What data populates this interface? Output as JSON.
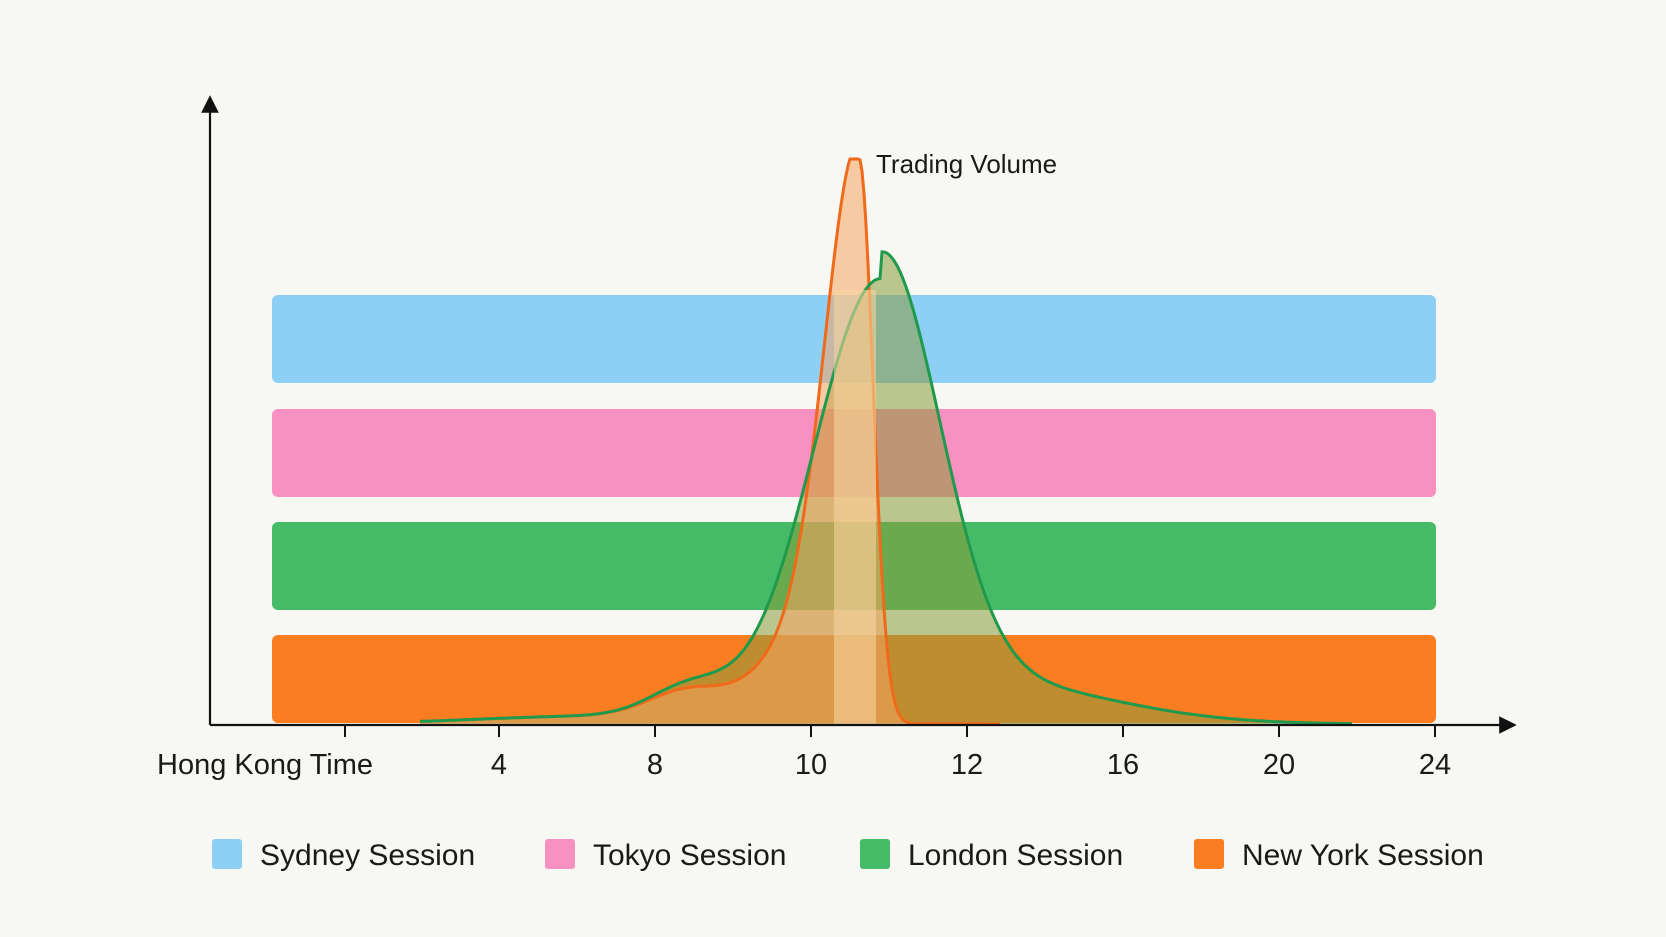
{
  "chart_data": {
    "type": "area",
    "title": "",
    "xlabel": "Hong Kong Time",
    "ylabel": "",
    "x_ticks": [
      "4",
      "8",
      "10",
      "12",
      "16",
      "20",
      "24"
    ],
    "grid": false,
    "legend_position": "bottom",
    "sessions": [
      {
        "name": "Sydney Session",
        "color": "#8ecff5"
      },
      {
        "name": "Tokyo Session",
        "color": "#f990c2"
      },
      {
        "name": "London Session",
        "color": "#45bb68"
      },
      {
        "name": "New York Session",
        "color": "#fb7d22"
      }
    ],
    "annotations": [
      {
        "text": "Trading Volume",
        "target": "peak"
      }
    ],
    "series": [
      {
        "name": "Volume (orange)",
        "color": "#ef6a1a",
        "peak_x": "~10.6",
        "shape": "narrow sharp peak"
      },
      {
        "name": "Volume (green)",
        "color": "#1f9a4c",
        "peak_x": "~11",
        "shape": "broader peak, slightly lower"
      }
    ]
  }
}
